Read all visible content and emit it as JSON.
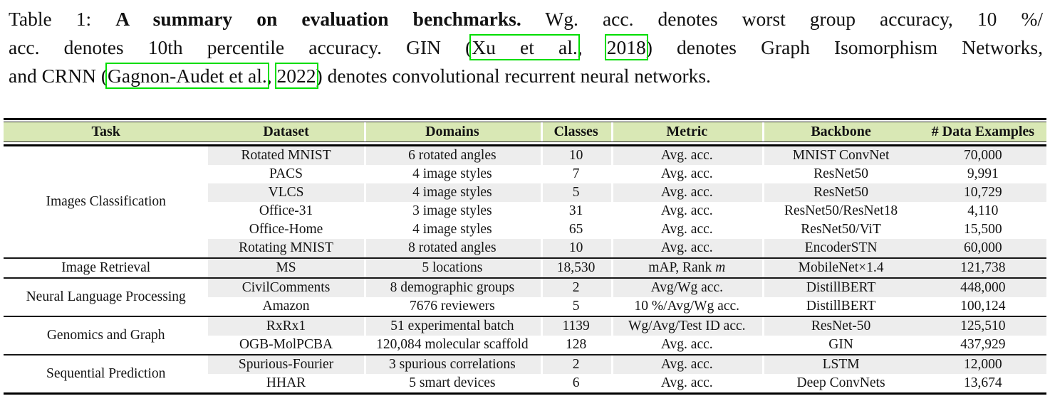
{
  "caption": {
    "link_box_color": "#00dd00",
    "lines": [
      {
        "justify": true,
        "segments": [
          {
            "text": "Table 1: "
          },
          {
            "text": "A summary on evaluation benchmarks.",
            "bold": true
          },
          {
            "text": " Wg. acc. denotes worst group accuracy, 10 %/"
          }
        ]
      },
      {
        "justify": true,
        "segments": [
          {
            "text": "acc. denotes 10th percentile accuracy. GIN ("
          },
          {
            "text": "Xu et al.",
            "boxed": true
          },
          {
            "text": ", "
          },
          {
            "text": "2018",
            "boxed": true
          },
          {
            "text": ") denotes Graph Isomorphism Networks,"
          }
        ]
      },
      {
        "justify": false,
        "segments": [
          {
            "text": "and CRNN ("
          },
          {
            "text": "Gagnon-Audet et al.",
            "boxed": true
          },
          {
            "text": ", "
          },
          {
            "text": "2022",
            "boxed": true
          },
          {
            "text": ") denotes convolutional recurrent neural networks."
          }
        ]
      }
    ]
  },
  "table": {
    "header_bg": "#d9e8b5",
    "stripe_color": "#ededed",
    "columns": [
      {
        "key": "task",
        "label": "Task"
      },
      {
        "key": "dataset",
        "label": "Dataset"
      },
      {
        "key": "domains",
        "label": "Domains"
      },
      {
        "key": "classes",
        "label": "Classes"
      },
      {
        "key": "metric",
        "label": "Metric"
      },
      {
        "key": "backbone",
        "label": "Backbone"
      },
      {
        "key": "examples",
        "label": "# Data Examples"
      }
    ],
    "sections": [
      {
        "task": "Images Classification",
        "rows": [
          {
            "dataset": "Rotated MNIST",
            "domains": "6 rotated angles",
            "classes": "10",
            "metric": "Avg. acc.",
            "backbone": "MNIST ConvNet",
            "examples": "70,000",
            "shaded": true
          },
          {
            "dataset": "PACS",
            "domains": "4 image styles",
            "classes": "7",
            "metric": "Avg. acc.",
            "backbone": "ResNet50",
            "examples": "9,991",
            "shaded": false
          },
          {
            "dataset": "VLCS",
            "domains": "4 image styles",
            "classes": "5",
            "metric": "Avg. acc.",
            "backbone": "ResNet50",
            "examples": "10,729",
            "shaded": true
          },
          {
            "dataset": "Office-31",
            "domains": "3 image styles",
            "classes": "31",
            "metric": "Avg. acc.",
            "backbone": "ResNet50/ResNet18",
            "examples": "4,110",
            "shaded": false
          },
          {
            "dataset": "Office-Home",
            "domains": "4 image styles",
            "classes": "65",
            "metric": "Avg. acc.",
            "backbone": "ResNet50/ViT",
            "examples": "15,500",
            "shaded": false
          },
          {
            "dataset": "Rotating MNIST",
            "domains": "8 rotated angles",
            "classes": "10",
            "metric": "Avg. acc.",
            "backbone": "EncoderSTN",
            "examples": "60,000",
            "shaded": true
          }
        ]
      },
      {
        "task": "Image Retrieval",
        "rows": [
          {
            "dataset": "MS",
            "domains": "5 locations",
            "classes": "18,530",
            "metric": "mAP, Rank",
            "metric_italic": "m",
            "backbone": "MobileNet×1.4",
            "examples": "121,738",
            "shaded": true
          }
        ]
      },
      {
        "task": "Neural Language Processing",
        "rows": [
          {
            "dataset": "CivilComments",
            "domains": "8 demographic groups",
            "classes": "2",
            "metric": "Avg/Wg acc.",
            "backbone": "DistillBERT",
            "examples": "448,000",
            "shaded": true
          },
          {
            "dataset": "Amazon",
            "domains": "7676 reviewers",
            "classes": "5",
            "metric": "10 %/Avg/Wg acc.",
            "backbone": "DistillBERT",
            "examples": "100,124",
            "shaded": false
          }
        ]
      },
      {
        "task": "Genomics and Graph",
        "rows": [
          {
            "dataset": "RxRx1",
            "domains": "51 experimental batch",
            "classes": "1139",
            "metric": "Wg/Avg/Test ID acc.",
            "backbone": "ResNet-50",
            "examples": "125,510",
            "shaded": true
          },
          {
            "dataset": "OGB-MolPCBA",
            "domains": "120,084 molecular scaffold",
            "classes": "128",
            "metric": "Avg. acc.",
            "backbone": "GIN",
            "examples": "437,929",
            "shaded": false
          }
        ]
      },
      {
        "task": "Sequential Prediction",
        "rows": [
          {
            "dataset": "Spurious-Fourier",
            "domains": "3 spurious correlations",
            "classes": "2",
            "metric": "Avg. acc.",
            "backbone": "LSTM",
            "examples": "12,000",
            "shaded": true
          },
          {
            "dataset": "HHAR",
            "domains": "5 smart devices",
            "classes": "6",
            "metric": "Avg. acc.",
            "backbone": "Deep ConvNets",
            "examples": "13,674",
            "shaded": false
          }
        ]
      }
    ]
  }
}
